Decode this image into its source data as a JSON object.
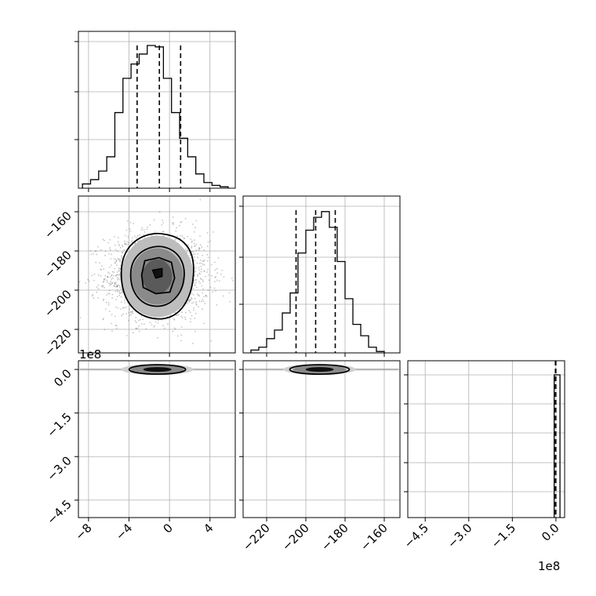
{
  "chart_data": {
    "type": "corner",
    "parameters": [
      "",
      "",
      ""
    ],
    "grid": true,
    "offset_labels": {
      "row3_y": "1e8",
      "col3_x": "1e8"
    },
    "tick_labels": {
      "col1_x": [
        "−8",
        "−4",
        "0",
        "4"
      ],
      "col2_x": [
        "−220",
        "−200",
        "−180",
        "−160"
      ],
      "col3_x": [
        "−4.5",
        "−3.0",
        "−1.5",
        "0.0"
      ],
      "row2_y": [
        "−160",
        "−180",
        "−200",
        "−220"
      ],
      "row3_y": [
        "0.0",
        "−1.5",
        "−3.0",
        "−4.5"
      ]
    },
    "ranges": {
      "p1": [
        -9,
        6.5
      ],
      "p2": [
        -232,
        -152
      ],
      "p3": [
        -5.1,
        0.3
      ]
    },
    "marginals": [
      {
        "param": "p1",
        "bin_edges": [
          -8.6,
          -7.8,
          -7.0,
          -6.2,
          -5.4,
          -4.6,
          -3.8,
          -3.0,
          -2.2,
          -1.4,
          -0.6,
          0.2,
          1.0,
          1.8,
          2.6,
          3.4,
          4.2,
          5.0,
          5.8
        ],
        "counts": [
          3,
          6,
          12,
          22,
          53,
          77,
          87,
          94,
          100,
          99,
          77,
          53,
          35,
          22,
          10,
          4,
          2,
          1
        ],
        "quantiles": [
          -3.2,
          -1.0,
          1.1
        ]
      },
      {
        "param": "p2",
        "bin_edges": [
          -228,
          -224,
          -220,
          -216,
          -212,
          -208,
          -204,
          -200,
          -196,
          -192,
          -188,
          -184,
          -180,
          -176,
          -172,
          -168,
          -164,
          -160
        ],
        "counts": [
          2,
          4,
          10,
          16,
          28,
          42,
          70,
          86,
          95,
          99,
          88,
          64,
          38,
          20,
          12,
          4,
          1
        ],
        "quantiles": [
          -205,
          -195,
          -185
        ]
      },
      {
        "param": "p3",
        "bin_edges": [
          -0.06,
          0.0,
          0.14
        ],
        "counts": [
          100,
          100
        ],
        "quantiles": [
          -0.02,
          -0.01,
          0.0
        ]
      }
    ],
    "joint_2d": [
      {
        "x": "p1",
        "y": "p2",
        "center": [
          -1.2,
          -193
        ],
        "spread": [
          2.7,
          12
        ],
        "style": "contours with scatter"
      },
      {
        "x": "p1",
        "y": "p3",
        "center": [
          -1.2,
          0.0
        ],
        "spread": [
          2.7,
          0.02
        ],
        "style": "thin contours"
      },
      {
        "x": "p2",
        "y": "p3",
        "center": [
          -193,
          0.0
        ],
        "spread": [
          12,
          0.02
        ],
        "style": "thin contours"
      }
    ]
  }
}
